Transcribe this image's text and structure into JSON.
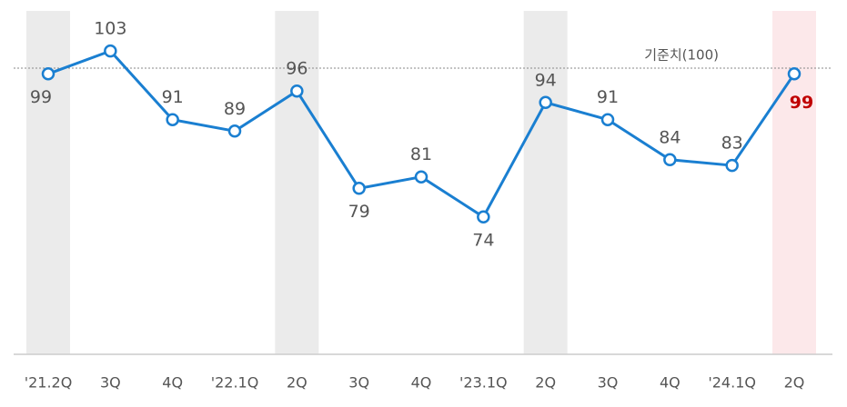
{
  "chart_data": {
    "type": "line",
    "categories": [
      "'21.2Q",
      "3Q",
      "4Q",
      "'22.1Q",
      "2Q",
      "3Q",
      "4Q",
      "'23.1Q",
      "2Q",
      "3Q",
      "4Q",
      "'24.1Q",
      "2Q"
    ],
    "series": [
      {
        "color": "#1a7fd1",
        "values": [
          99,
          103,
          91,
          89,
          96,
          79,
          81,
          74,
          94,
          91,
          84,
          83,
          99
        ]
      }
    ],
    "ylim": [
      50,
      110
    ],
    "reference_line": {
      "value": 100,
      "label": "기준치(100)"
    },
    "shaded_categories": [
      0,
      4,
      8
    ],
    "shade_color": "#ebebeb",
    "highlight": {
      "index": 12,
      "band_color": "#fce8ea",
      "label_color": "#c00000"
    },
    "label_positions": [
      "below",
      "above",
      "above",
      "above",
      "above",
      "below",
      "above",
      "below",
      "above",
      "above",
      "above",
      "above",
      "right"
    ]
  }
}
